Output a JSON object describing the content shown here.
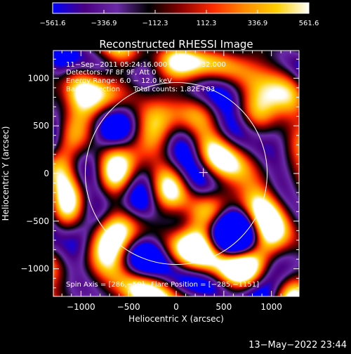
{
  "colorbar": {
    "ticks": [
      -561.6,
      -336.9,
      -112.3,
      112.3,
      336.9,
      561.6
    ],
    "tick_labels": [
      "−561.6",
      "−336.9",
      "−112.3",
      "112.3",
      "336.9",
      "561.6"
    ],
    "range": [
      -561.6,
      561.6
    ],
    "colors": [
      "#0000ff",
      "#4b0082",
      "#6a2aa8",
      "#000000",
      "#8b0000",
      "#ff2a00",
      "#ff8c00",
      "#ffd000",
      "#ffffff"
    ]
  },
  "chart_data": {
    "type": "heatmap",
    "title": "Reconstructed RHESSI Image",
    "xlabel": "Heliocentric X (arcsec)",
    "ylabel": "Heliocentric Y (arcsec)",
    "xlim": [
      -1290,
      1290
    ],
    "ylim": [
      -1290,
      1290
    ],
    "x_ticks": [
      -1000,
      -500,
      0,
      500,
      1000
    ],
    "y_ticks": [
      -1000,
      -500,
      0,
      500,
      1000
    ],
    "x_tick_labels": [
      "−1000",
      "−500",
      "0",
      "500",
      "1000"
    ],
    "y_tick_labels": [
      "−1000",
      "−500",
      "0",
      "500",
      "1000"
    ],
    "solar_disk": {
      "center": [
        0,
        0
      ],
      "radius": 955
    },
    "sun_center_marker": [
      285,
      10
    ],
    "annotations": [
      "11−Sep−2011 05:24:16.000 to 05:25:32.000",
      "Detectors: 7F 8F 9F, Att 0",
      "Energy Range: 6.0 − 12.0 keV",
      "Back Projection      Total counts: 1.82E+03"
    ],
    "footer_annotation": "Spin Axis = [286,−59]   Flare Position = [−285,−1151]"
  },
  "timestamp": "13−May−2022 23:44"
}
